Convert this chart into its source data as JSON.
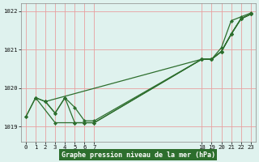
{
  "bg_color": "#dff2ee",
  "grid_color": "#e8a0a0",
  "line_color": "#2d6e2d",
  "marker_color": "#2d6e2d",
  "xlabel": "Graphe pression niveau de la mer (hPa)",
  "xlabel_bg": "#2d6e2d",
  "xlabel_color": "#ffffff",
  "ylim": [
    1018.6,
    1022.2
  ],
  "xlim": [
    -0.5,
    23.5
  ],
  "yticks": [
    1019,
    1020,
    1021,
    1022
  ],
  "xticks_left": [
    0,
    1,
    2,
    3,
    4,
    5,
    6,
    7
  ],
  "xticks_right": [
    18,
    19,
    20,
    21,
    22,
    23
  ],
  "series": [
    {
      "x": [
        0,
        1,
        3,
        5,
        6,
        7,
        18,
        19,
        20,
        21,
        22,
        23
      ],
      "y": [
        1019.25,
        1019.75,
        1019.1,
        1019.1,
        1019.1,
        1019.1,
        1020.75,
        1020.75,
        1020.95,
        1021.4,
        1021.8,
        1021.92
      ]
    },
    {
      "x": [
        1,
        2,
        3,
        4,
        5,
        6,
        7,
        18,
        19,
        20,
        21,
        22,
        23
      ],
      "y": [
        1019.75,
        1019.65,
        1019.35,
        1019.75,
        1019.1,
        1019.1,
        1019.1,
        1020.75,
        1020.75,
        1020.95,
        1021.4,
        1021.8,
        1021.92
      ]
    },
    {
      "x": [
        0,
        1,
        2,
        18,
        19,
        20,
        21,
        22,
        23
      ],
      "y": [
        1019.25,
        1019.75,
        1019.65,
        1020.75,
        1020.75,
        1020.95,
        1021.4,
        1021.8,
        1021.92
      ]
    },
    {
      "x": [
        2,
        3,
        4,
        5,
        6,
        7,
        18,
        19,
        20,
        21,
        22,
        23
      ],
      "y": [
        1019.65,
        1019.35,
        1019.75,
        1019.5,
        1019.15,
        1019.15,
        1020.75,
        1020.75,
        1020.95,
        1021.4,
        1021.8,
        1021.92
      ]
    },
    {
      "x": [
        18,
        19,
        20,
        21,
        22,
        23
      ],
      "y": [
        1020.75,
        1020.75,
        1021.05,
        1021.75,
        1021.85,
        1021.95
      ]
    }
  ]
}
